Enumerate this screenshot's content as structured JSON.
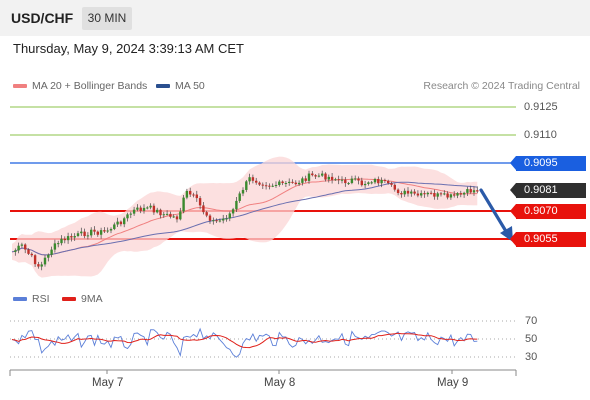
{
  "header": {
    "symbol": "USD/CHF",
    "timeframe": "30 MIN",
    "datetime": "Thursday, May 9, 2024 3:39:13 AM CET"
  },
  "legend": {
    "ma20_label": "MA 20 + Bollinger Bands",
    "ma50_label": "MA 50",
    "ma20_color": "#f08080",
    "ma50_color": "#2a4f8f",
    "copyright": "Research © 2024 Trading Central"
  },
  "levels": {
    "r2": "0.9125",
    "r1": "0.9110",
    "pivot": "0.9095",
    "last": "0.9081",
    "s1": "0.9070",
    "s2": "0.9055"
  },
  "rsi": {
    "rsi_label": "RSI",
    "ma_label": "9MA",
    "rsi_color": "#5b7fd8",
    "ma_color": "#e0201a",
    "levels": [
      "70",
      "50",
      "30"
    ]
  },
  "xaxis": {
    "labels": [
      "May 7",
      "May 8",
      "May 9"
    ]
  },
  "colors": {
    "up": "#3a8a2e",
    "down": "#c0302a",
    "resistance": "#8bc34a",
    "pivot": "#1a5fe0",
    "support": "#e8120c",
    "arrow": "#2b5aa8"
  }
}
